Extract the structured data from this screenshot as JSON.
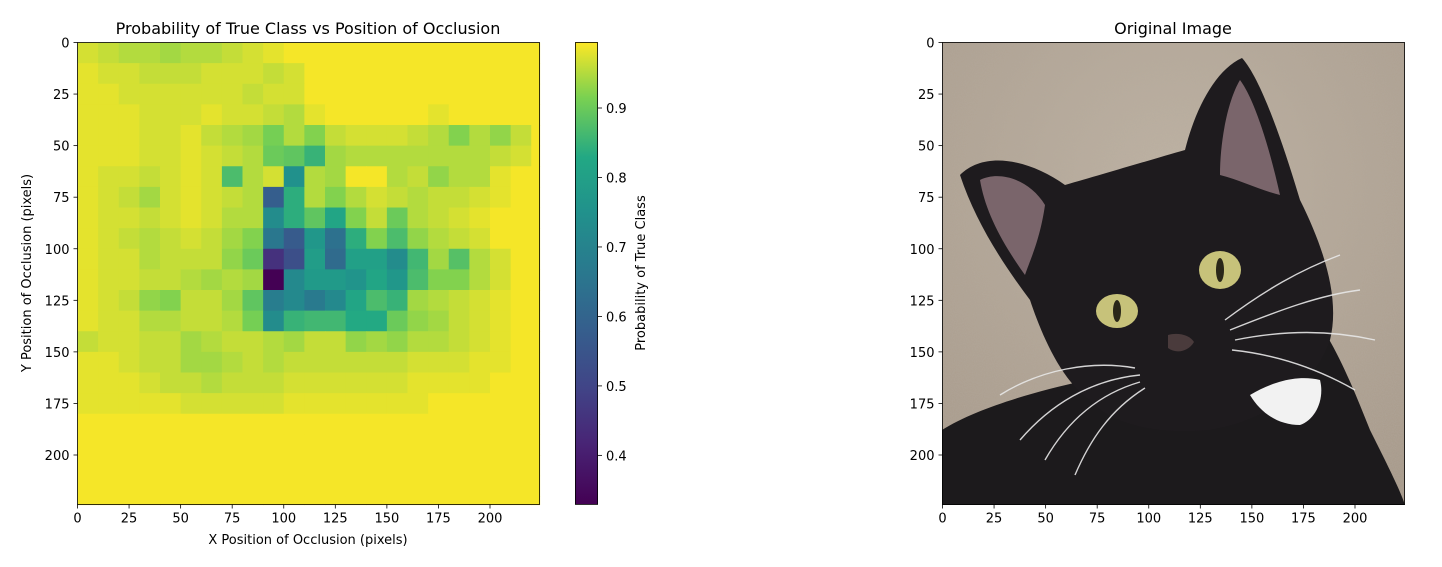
{
  "chart_data": [
    {
      "type": "heatmap",
      "title": "Probability of True Class vs Position of Occlusion",
      "xlabel": "X Position of Occlusion (pixels)",
      "ylabel": "Y Position of Occlusion (pixels)",
      "extent": [
        0,
        224
      ],
      "cell_size": 10,
      "x_ticks": [
        0,
        25,
        50,
        75,
        100,
        125,
        150,
        175,
        200
      ],
      "y_ticks": [
        0,
        25,
        50,
        75,
        100,
        125,
        150,
        175,
        200
      ],
      "colormap": "viridis",
      "colorbar": {
        "label": "Probability of True Class",
        "range": [
          0.33,
          0.995
        ],
        "ticks": [
          0.4,
          0.5,
          0.6,
          0.7,
          0.8,
          0.9
        ]
      },
      "grid": false,
      "values": [
        [
          0.97,
          0.96,
          0.95,
          0.95,
          0.94,
          0.95,
          0.95,
          0.96,
          0.97,
          0.98,
          0.99,
          0.99,
          0.99,
          0.99,
          0.99,
          0.99,
          0.99,
          0.99,
          0.99,
          0.99,
          0.99,
          0.99,
          0.99
        ],
        [
          0.98,
          0.97,
          0.97,
          0.96,
          0.96,
          0.96,
          0.97,
          0.97,
          0.97,
          0.96,
          0.97,
          0.99,
          0.99,
          0.99,
          0.99,
          0.99,
          0.99,
          0.99,
          0.99,
          0.99,
          0.99,
          0.99,
          0.99
        ],
        [
          0.98,
          0.98,
          0.97,
          0.97,
          0.97,
          0.97,
          0.97,
          0.97,
          0.96,
          0.97,
          0.97,
          0.99,
          0.99,
          0.99,
          0.99,
          0.99,
          0.99,
          0.99,
          0.99,
          0.99,
          0.99,
          0.99,
          0.99
        ],
        [
          0.98,
          0.98,
          0.98,
          0.97,
          0.97,
          0.97,
          0.98,
          0.97,
          0.97,
          0.96,
          0.95,
          0.98,
          0.99,
          0.99,
          0.99,
          0.99,
          0.99,
          0.98,
          0.99,
          0.99,
          0.99,
          0.99,
          0.99
        ],
        [
          0.98,
          0.98,
          0.98,
          0.97,
          0.97,
          0.98,
          0.96,
          0.95,
          0.94,
          0.91,
          0.95,
          0.92,
          0.96,
          0.97,
          0.97,
          0.97,
          0.96,
          0.95,
          0.92,
          0.95,
          0.93,
          0.96,
          0.99
        ],
        [
          0.98,
          0.98,
          0.98,
          0.97,
          0.97,
          0.98,
          0.97,
          0.96,
          0.95,
          0.9,
          0.89,
          0.85,
          0.94,
          0.95,
          0.95,
          0.95,
          0.95,
          0.95,
          0.95,
          0.95,
          0.96,
          0.97,
          0.99
        ],
        [
          0.98,
          0.97,
          0.97,
          0.96,
          0.97,
          0.98,
          0.97,
          0.87,
          0.95,
          0.97,
          0.75,
          0.95,
          0.94,
          0.99,
          0.99,
          0.95,
          0.96,
          0.93,
          0.95,
          0.95,
          0.98,
          0.99,
          0.99
        ],
        [
          0.98,
          0.97,
          0.96,
          0.94,
          0.97,
          0.98,
          0.97,
          0.96,
          0.95,
          0.58,
          0.84,
          0.95,
          0.92,
          0.95,
          0.97,
          0.96,
          0.95,
          0.96,
          0.96,
          0.97,
          0.98,
          0.99,
          0.99
        ],
        [
          0.98,
          0.97,
          0.97,
          0.96,
          0.97,
          0.98,
          0.97,
          0.95,
          0.95,
          0.73,
          0.84,
          0.89,
          0.82,
          0.92,
          0.96,
          0.9,
          0.95,
          0.96,
          0.97,
          0.98,
          0.99,
          0.99,
          0.99
        ],
        [
          0.98,
          0.97,
          0.96,
          0.95,
          0.96,
          0.97,
          0.96,
          0.94,
          0.92,
          0.66,
          0.57,
          0.77,
          0.64,
          0.84,
          0.92,
          0.87,
          0.93,
          0.95,
          0.96,
          0.97,
          0.99,
          0.99,
          0.99
        ],
        [
          0.98,
          0.97,
          0.97,
          0.95,
          0.96,
          0.96,
          0.96,
          0.93,
          0.9,
          0.45,
          0.53,
          0.79,
          0.62,
          0.8,
          0.8,
          0.73,
          0.86,
          0.94,
          0.88,
          0.95,
          0.97,
          0.99,
          0.99
        ],
        [
          0.98,
          0.97,
          0.97,
          0.96,
          0.96,
          0.95,
          0.94,
          0.95,
          0.94,
          0.33,
          0.72,
          0.78,
          0.78,
          0.76,
          0.82,
          0.77,
          0.87,
          0.92,
          0.92,
          0.95,
          0.97,
          0.99,
          0.99
        ],
        [
          0.98,
          0.97,
          0.96,
          0.93,
          0.92,
          0.96,
          0.96,
          0.94,
          0.89,
          0.68,
          0.72,
          0.67,
          0.72,
          0.82,
          0.87,
          0.85,
          0.94,
          0.95,
          0.96,
          0.97,
          0.98,
          0.99,
          0.99
        ],
        [
          0.98,
          0.97,
          0.97,
          0.95,
          0.95,
          0.96,
          0.96,
          0.95,
          0.91,
          0.73,
          0.85,
          0.86,
          0.86,
          0.83,
          0.83,
          0.9,
          0.93,
          0.94,
          0.96,
          0.97,
          0.98,
          0.99,
          0.99
        ],
        [
          0.96,
          0.97,
          0.97,
          0.96,
          0.96,
          0.94,
          0.95,
          0.96,
          0.96,
          0.95,
          0.94,
          0.96,
          0.96,
          0.93,
          0.94,
          0.93,
          0.95,
          0.95,
          0.96,
          0.97,
          0.98,
          0.99,
          0.99
        ],
        [
          0.98,
          0.98,
          0.97,
          0.96,
          0.96,
          0.94,
          0.94,
          0.95,
          0.96,
          0.95,
          0.96,
          0.96,
          0.96,
          0.96,
          0.96,
          0.96,
          0.97,
          0.97,
          0.97,
          0.98,
          0.98,
          0.99,
          0.99
        ],
        [
          0.98,
          0.98,
          0.98,
          0.97,
          0.96,
          0.96,
          0.95,
          0.96,
          0.96,
          0.96,
          0.97,
          0.97,
          0.97,
          0.97,
          0.97,
          0.97,
          0.98,
          0.98,
          0.98,
          0.98,
          0.99,
          0.99,
          0.99
        ],
        [
          0.98,
          0.98,
          0.98,
          0.98,
          0.98,
          0.97,
          0.97,
          0.97,
          0.97,
          0.97,
          0.98,
          0.98,
          0.98,
          0.98,
          0.98,
          0.98,
          0.98,
          0.99,
          0.99,
          0.99,
          0.99,
          0.99,
          0.99
        ],
        [
          0.99,
          0.99,
          0.99,
          0.99,
          0.99,
          0.99,
          0.99,
          0.99,
          0.99,
          0.99,
          0.99,
          0.99,
          0.99,
          0.99,
          0.99,
          0.99,
          0.99,
          0.99,
          0.99,
          0.99,
          0.99,
          0.99,
          0.99
        ],
        [
          0.99,
          0.99,
          0.99,
          0.99,
          0.99,
          0.99,
          0.99,
          0.99,
          0.99,
          0.99,
          0.99,
          0.99,
          0.99,
          0.99,
          0.99,
          0.99,
          0.99,
          0.99,
          0.99,
          0.99,
          0.99,
          0.99,
          0.99
        ],
        [
          0.99,
          0.99,
          0.99,
          0.99,
          0.99,
          0.99,
          0.99,
          0.99,
          0.99,
          0.99,
          0.99,
          0.99,
          0.99,
          0.99,
          0.99,
          0.99,
          0.99,
          0.99,
          0.99,
          0.99,
          0.99,
          0.99,
          0.99
        ],
        [
          0.99,
          0.99,
          0.99,
          0.99,
          0.99,
          0.99,
          0.99,
          0.99,
          0.99,
          0.99,
          0.99,
          0.99,
          0.99,
          0.99,
          0.99,
          0.99,
          0.99,
          0.99,
          0.99,
          0.99,
          0.99,
          0.99,
          0.99
        ],
        [
          0.99,
          0.99,
          0.99,
          0.99,
          0.99,
          0.99,
          0.99,
          0.99,
          0.99,
          0.99,
          0.99,
          0.99,
          0.99,
          0.99,
          0.99,
          0.99,
          0.99,
          0.99,
          0.99,
          0.99,
          0.99,
          0.99,
          0.99
        ]
      ]
    },
    {
      "type": "image",
      "title": "Original Image",
      "subject": "black kitten with white chest patch and yellow eyes on beige carpet",
      "extent": [
        0,
        224
      ],
      "x_ticks": [
        0,
        25,
        50,
        75,
        100,
        125,
        150,
        175,
        200
      ],
      "y_ticks": [
        0,
        25,
        50,
        75,
        100,
        125,
        150,
        175,
        200
      ]
    }
  ],
  "colors": {
    "carpet": "#b5a898",
    "fur": "#1c1a1c",
    "eye": "#c7c27a",
    "ear_inner": "#9a7f86",
    "chest": "#f2f2f2"
  }
}
